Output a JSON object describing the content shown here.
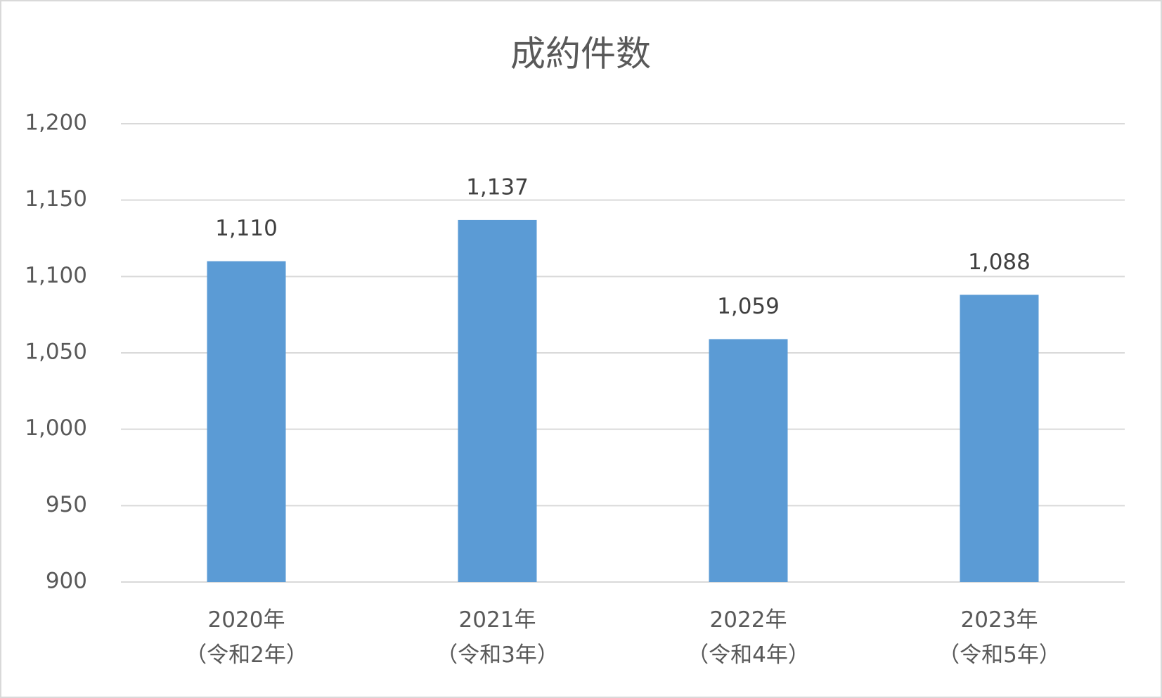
{
  "chart_data": {
    "type": "bar",
    "title": "成約件数",
    "categories": [
      "2020年\n（令和2年）",
      "2021年\n（令和3年）",
      "2022年\n（令和4年）",
      "2023年\n（令和5年）"
    ],
    "values": [
      1110,
      1137,
      1059,
      1088
    ],
    "value_labels": [
      "1,110",
      "1,137",
      "1,059",
      "1,088"
    ],
    "color": "#5b9bd5",
    "ylim": [
      900,
      1200
    ],
    "yticks": [
      900,
      950,
      {
        "value": 1000,
        "label": "1,000"
      },
      {
        "value": 1050,
        "label": "1,050"
      },
      {
        "value": 1100,
        "label": "1,100"
      },
      {
        "value": 1150,
        "label": "1,150"
      },
      {
        "value": 1200,
        "label": "1,200"
      }
    ],
    "grid": true
  }
}
